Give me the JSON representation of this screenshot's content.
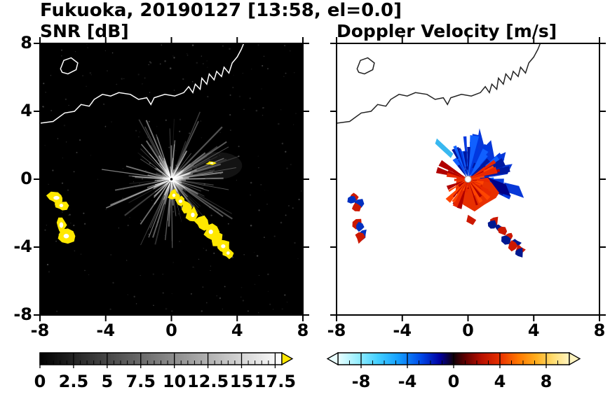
{
  "title": "Fukuoka, 20190127 [13:58, el=0.0]",
  "panels": [
    {
      "title": "SNR [dB]",
      "xticks": [
        "-8",
        "-4",
        "0",
        "4",
        "8"
      ],
      "yticks": [
        "8",
        "4",
        "0",
        "-4",
        "-8"
      ],
      "colorbar_ticks": [
        "0",
        "2.5",
        "5",
        "7.5",
        "10",
        "12.5",
        "15",
        "17.5"
      ]
    },
    {
      "title": "Doppler Velocity [m/s]",
      "xticks": [
        "-8",
        "-4",
        "0",
        "4",
        "8"
      ],
      "yticks": [
        "8",
        "4",
        "0",
        "-4",
        "-8"
      ],
      "colorbar_ticks": [
        "-8",
        "-4",
        "0",
        "4",
        "8"
      ]
    }
  ],
  "chart_data": [
    {
      "type": "heatmap",
      "panel": "SNR",
      "title": "SNR [dB]",
      "units": "dB",
      "xlim": [
        -8,
        8
      ],
      "ylim": [
        -8,
        8
      ],
      "xticks": [
        -8,
        -4,
        0,
        4,
        8
      ],
      "yticks": [
        8,
        4,
        0,
        -4,
        -8
      ],
      "background": "#000000",
      "grid": false,
      "colorbar": {
        "range": [
          0,
          18
        ],
        "tick_values": [
          0,
          2.5,
          5,
          7.5,
          10,
          12.5,
          15,
          17.5
        ],
        "minor_step": 0.5,
        "gradient": [
          [
            "#000000",
            0
          ],
          [
            "#ffffff",
            1
          ]
        ],
        "over_arrow_color": "#ffe800"
      },
      "features": {
        "radar_origin_km": [
          0,
          0
        ],
        "clutter_rays": {
          "count": 150,
          "max_len_km": 4.5,
          "color": "#ffffff"
        },
        "shadow_spokes_deg": [
          100,
          140,
          195,
          215,
          240,
          260,
          285
        ],
        "haze_km": {
          "x": 2.8,
          "y": 0.8,
          "rx": 1.5,
          "ry": 0.8
        },
        "coastline_color": "#ffffff",
        "coastline_km": [
          [
            -8,
            3.3
          ],
          [
            -7.2,
            3.4
          ],
          [
            -6.5,
            3.9
          ],
          [
            -5.9,
            4.0
          ],
          [
            -5.5,
            4.4
          ],
          [
            -5.0,
            4.3
          ],
          [
            -4.7,
            4.7
          ],
          [
            -4.2,
            5.0
          ],
          [
            -3.7,
            4.9
          ],
          [
            -3.2,
            5.1
          ],
          [
            -2.5,
            5.0
          ],
          [
            -2.0,
            4.7
          ],
          [
            -1.5,
            4.8
          ],
          [
            -1.25,
            4.4
          ],
          [
            -1.05,
            4.8
          ],
          [
            -0.4,
            5.0
          ],
          [
            0.2,
            4.9
          ],
          [
            0.75,
            5.1
          ],
          [
            1.05,
            5.45
          ],
          [
            1.3,
            5.1
          ],
          [
            1.45,
            5.6
          ],
          [
            1.75,
            5.3
          ],
          [
            1.85,
            5.95
          ],
          [
            2.15,
            5.6
          ],
          [
            2.3,
            6.2
          ],
          [
            2.6,
            5.85
          ],
          [
            2.75,
            6.35
          ],
          [
            3.05,
            6.05
          ],
          [
            3.2,
            6.6
          ],
          [
            3.5,
            6.25
          ],
          [
            3.7,
            6.85
          ],
          [
            4.0,
            7.2
          ],
          [
            4.25,
            7.65
          ],
          [
            4.4,
            8.0
          ]
        ],
        "island_km": [
          [
            -6.75,
            6.5
          ],
          [
            -6.55,
            7.0
          ],
          [
            -6.1,
            7.15
          ],
          [
            -5.7,
            6.85
          ],
          [
            -5.8,
            6.45
          ],
          [
            -6.3,
            6.2
          ],
          [
            -6.65,
            6.3
          ]
        ],
        "strong_echo_color": "#ffe800",
        "strong_echo_core_color": "#ffffff",
        "strong_echoes_km": [
          {
            "x": -7.0,
            "y": -1.1,
            "rx": 0.55,
            "ry": 0.35
          },
          {
            "x": -6.7,
            "y": -1.55,
            "rx": 0.35,
            "ry": 0.3
          },
          {
            "x": -6.7,
            "y": -2.7,
            "rx": 0.35,
            "ry": 0.5
          },
          {
            "x": -6.4,
            "y": -3.35,
            "rx": 0.5,
            "ry": 0.4
          },
          {
            "x": 0.15,
            "y": -0.95,
            "rx": 0.3,
            "ry": 0.3
          },
          {
            "x": 0.55,
            "y": -1.3,
            "rx": 0.35,
            "ry": 0.3
          },
          {
            "x": 0.95,
            "y": -1.65,
            "rx": 0.3,
            "ry": 0.35
          },
          {
            "x": 1.3,
            "y": -2.1,
            "rx": 0.35,
            "ry": 0.4
          },
          {
            "x": 1.9,
            "y": -2.6,
            "rx": 0.45,
            "ry": 0.35
          },
          {
            "x": 2.4,
            "y": -3.1,
            "rx": 0.4,
            "ry": 0.4
          },
          {
            "x": 2.75,
            "y": -3.55,
            "rx": 0.35,
            "ry": 0.35
          },
          {
            "x": 3.15,
            "y": -3.95,
            "rx": 0.4,
            "ry": 0.35
          },
          {
            "x": 3.45,
            "y": -4.35,
            "rx": 0.3,
            "ry": 0.3
          },
          {
            "x": 2.45,
            "y": 0.95,
            "rx": 0.3,
            "ry": 0.12
          }
        ]
      }
    },
    {
      "type": "heatmap",
      "panel": "VEL",
      "title": "Doppler Velocity [m/s]",
      "units": "m/s",
      "xlim": [
        -8,
        8
      ],
      "ylim": [
        -8,
        8
      ],
      "xticks": [
        -8,
        -4,
        0,
        4,
        8
      ],
      "yticks": [
        8,
        4,
        0,
        -4,
        -8
      ],
      "background": "#ffffff",
      "grid": false,
      "colorbar": {
        "range": [
          -10,
          10
        ],
        "tick_values": [
          -8,
          -4,
          0,
          4,
          8
        ],
        "minor_step": 1,
        "gradient": [
          [
            "#eaffff",
            0
          ],
          [
            "#9df0ff",
            0.08
          ],
          [
            "#45d0ff",
            0.17
          ],
          [
            "#15a0ff",
            0.26
          ],
          [
            "#0048e8",
            0.36
          ],
          [
            "#0000a0",
            0.44
          ],
          [
            "#100008",
            0.5
          ],
          [
            "#600000",
            0.55
          ],
          [
            "#b81000",
            0.62
          ],
          [
            "#e83000",
            0.7
          ],
          [
            "#ff7800",
            0.78
          ],
          [
            "#ffb020",
            0.86
          ],
          [
            "#ffdc70",
            0.93
          ],
          [
            "#fff4c0",
            1
          ]
        ],
        "under_arrow_color": "#eaffff",
        "over_arrow_color": "#fff4c0"
      },
      "features": {
        "radar_origin_km": [
          0,
          0
        ],
        "coastline_color": "#222222",
        "negative_fan": {
          "count": 85,
          "angle_deg": [
            -25,
            125
          ],
          "len_km": [
            0.4,
            2.8
          ],
          "colors": [
            "#0018a0",
            "#0038e0",
            "#1060ff"
          ]
        },
        "positive_fan": {
          "count": 70,
          "angle_deg": [
            145,
            395
          ],
          "len_km": [
            0.3,
            2.1
          ],
          "colors": [
            "#b00000",
            "#e82800",
            "#ff4500"
          ]
        },
        "patches_blue": [
          {
            "color": "#0838d8",
            "points": [
              [
                0.1,
                0.3
              ],
              [
                0.3,
                1.2
              ],
              [
                0.1,
                2.2
              ],
              [
                0.5,
                1.9
              ],
              [
                0.7,
                3.0
              ],
              [
                1.0,
                1.9
              ],
              [
                1.4,
                2.3
              ],
              [
                1.6,
                1.3
              ],
              [
                2.3,
                1.6
              ],
              [
                2.1,
                0.8
              ],
              [
                2.7,
                0.9
              ],
              [
                2.4,
                0.3
              ],
              [
                1.5,
                0.15
              ],
              [
                0.7,
                0.1
              ]
            ]
          },
          {
            "color": "#0838d8",
            "points": [
              [
                2.2,
                -0.2
              ],
              [
                3.1,
                -0.4
              ],
              [
                3.4,
                -1.1
              ],
              [
                2.8,
                -0.9
              ],
              [
                2.35,
                -0.75
              ]
            ]
          },
          {
            "color": "#38b8f0",
            "points": [
              [
                -1.9,
                2.4
              ],
              [
                -0.9,
                1.5
              ],
              [
                -1.05,
                1.25
              ],
              [
                -2.0,
                2.1
              ]
            ]
          }
        ],
        "patches_red": [
          {
            "color": "#e83000",
            "points": [
              [
                -0.7,
                0.1
              ],
              [
                0.3,
                0.2
              ],
              [
                1.2,
                -0.1
              ],
              [
                2.1,
                -0.5
              ],
              [
                1.7,
                -1.1
              ],
              [
                1.0,
                -1.5
              ],
              [
                0.4,
                -1.9
              ],
              [
                -0.3,
                -1.5
              ],
              [
                -0.75,
                -0.7
              ]
            ]
          },
          {
            "color": "#cc1800",
            "points": [
              [
                0.0,
                -2.1
              ],
              [
                0.5,
                -2.4
              ],
              [
                0.3,
                -2.7
              ],
              [
                -0.1,
                -2.5
              ]
            ]
          }
        ],
        "patches_navy": [
          {
            "color": "#000088",
            "points": [
              [
                1.2,
                0.1
              ],
              [
                2.3,
                -0.3
              ],
              [
                2.6,
                -1.0
              ],
              [
                1.9,
                -0.8
              ]
            ]
          }
        ],
        "speck_clusters": [
          {
            "points": [
              [
                -6.95,
                -1.1
              ],
              [
                -6.7,
                -1.5
              ]
            ],
            "r": 0.3,
            "colors": [
              "#cc1800",
              "#0030c0"
            ]
          },
          {
            "points": [
              [
                -6.7,
                -2.7
              ],
              [
                -6.45,
                -3.3
              ]
            ],
            "r": 0.3,
            "colors": [
              "#cc1800",
              "#0030c0"
            ]
          },
          {
            "points": [
              [
                1.55,
                -2.55
              ],
              [
                1.95,
                -2.95
              ],
              [
                2.45,
                -3.4
              ],
              [
                2.85,
                -3.8
              ],
              [
                3.2,
                -4.2
              ]
            ],
            "r": 0.28,
            "colors": [
              "#cc1800",
              "#001890"
            ]
          }
        ]
      }
    }
  ]
}
